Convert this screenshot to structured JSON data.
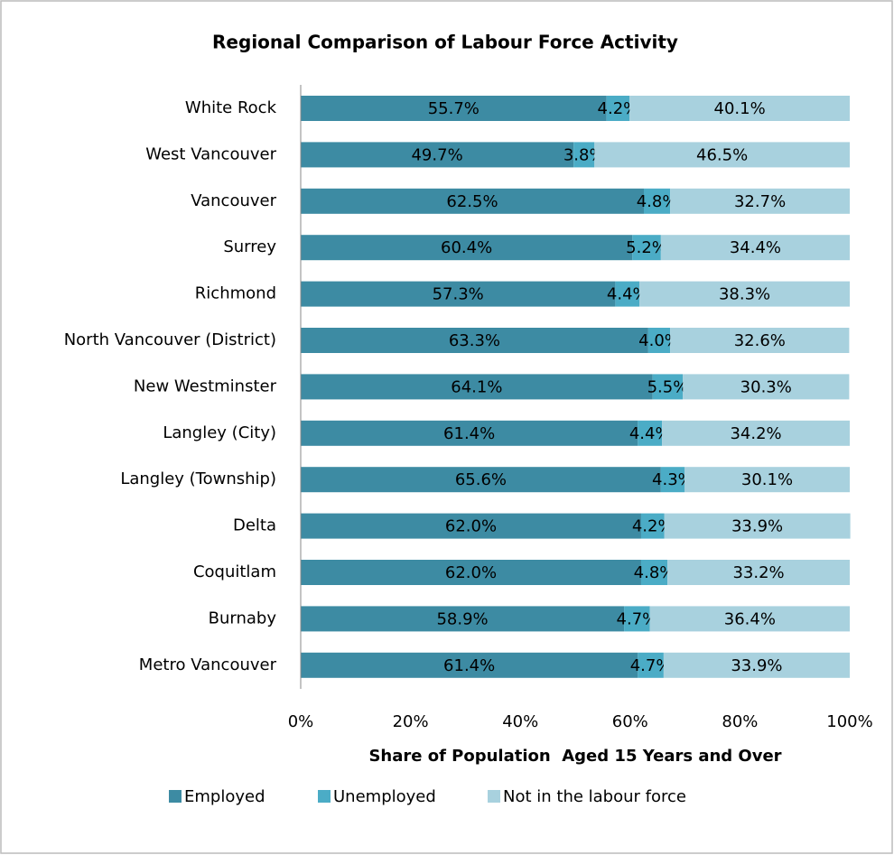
{
  "chart_data": {
    "type": "stacked-barh",
    "title": "Regional Comparison of Labour Force Activity",
    "x_label": "Share of Population  Aged 15 Years and Over",
    "categories": [
      "White Rock",
      "West Vancouver",
      "Vancouver",
      "Surrey",
      "Richmond",
      "North Vancouver (District)",
      "New Westminster",
      "Langley (City)",
      "Langley (Township)",
      "Delta",
      "Coquitlam",
      "Burnaby",
      "Metro Vancouver"
    ],
    "series": [
      {
        "name": "Employed",
        "color": "#3d8ba3",
        "values": [
          55.7,
          49.7,
          62.5,
          60.4,
          57.3,
          63.3,
          64.1,
          61.4,
          65.6,
          62.0,
          62.0,
          58.9,
          61.4
        ],
        "value_labels": [
          "55.7%",
          "49.7%",
          "62.5%",
          "60.4%",
          "57.3%",
          "63.3%",
          "64.1%",
          "61.4%",
          "65.6%",
          "62.0%",
          "62.0%",
          "58.9%",
          "61.4%"
        ]
      },
      {
        "name": "Unemployed",
        "color": "#4bacc6",
        "values": [
          4.2,
          3.8,
          4.8,
          5.2,
          4.4,
          4.0,
          5.5,
          4.4,
          4.3,
          4.2,
          4.8,
          4.7,
          4.7
        ],
        "value_labels": [
          "4.2%",
          "3.8%",
          "4.8%",
          "5.2%",
          "4.4%",
          "4.0%",
          "5.5%",
          "4.4%",
          "4.3%",
          "4.2%",
          "4.8%",
          "4.7%",
          "4.7%"
        ]
      },
      {
        "name": "Not in the labour force",
        "color": "#a8d1de",
        "values": [
          40.1,
          46.5,
          32.7,
          34.4,
          38.3,
          32.6,
          30.3,
          34.2,
          30.1,
          33.9,
          33.2,
          36.4,
          33.9
        ],
        "value_labels": [
          "40.1%",
          "46.5%",
          "32.7%",
          "34.4%",
          "38.3%",
          "32.6%",
          "30.3%",
          "34.2%",
          "30.1%",
          "33.9%",
          "33.2%",
          "36.4%",
          "33.9%"
        ]
      }
    ],
    "xlim": [
      0,
      100
    ],
    "xticks": [
      {
        "value": 0,
        "label": "0%"
      },
      {
        "value": 20,
        "label": "20%"
      },
      {
        "value": 40,
        "label": "40%"
      },
      {
        "value": 60,
        "label": "60%"
      },
      {
        "value": 80,
        "label": "80%"
      },
      {
        "value": 100,
        "label": "100%"
      }
    ],
    "legend": "bottom",
    "grid": false
  }
}
